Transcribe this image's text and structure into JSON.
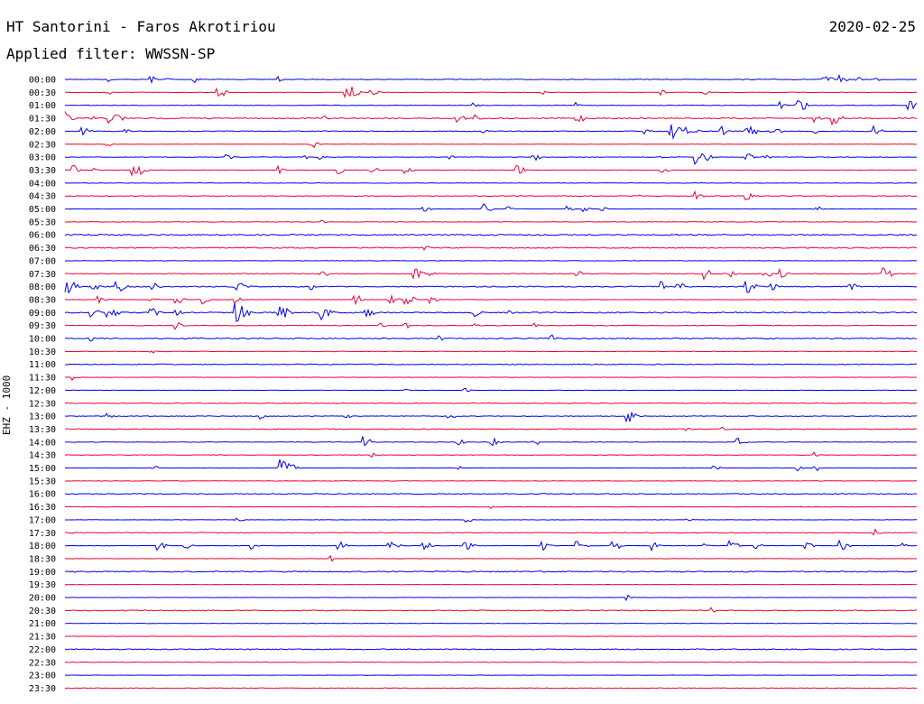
{
  "header": {
    "title": "HT Santorini - Faros Akrotiriou",
    "date": "2020-02-25",
    "filter_label": "Applied filter:",
    "filter_value": "WWSSN-SP"
  },
  "channel_label": "EHZ - 1000",
  "colors": {
    "odd_trace": "#0000ee",
    "even_trace": "#ee0033",
    "label": "#000000",
    "background": "#ffffff"
  },
  "chart_data": {
    "type": "line",
    "title": "HT Santorini - Faros Akrotiriou",
    "subtitle": "Applied filter: WWSSN-SP",
    "ylabel": "EHZ - 1000",
    "xlabel": "",
    "x_range_minutes": [
      0,
      30
    ],
    "grid": false,
    "legend": "none",
    "rows": [
      {
        "time": "00:00",
        "noise": 0.6,
        "events": [
          [
            0.05,
            2
          ],
          [
            0.1,
            3
          ],
          [
            0.12,
            2
          ],
          [
            0.15,
            3
          ],
          [
            0.25,
            2
          ],
          [
            0.89,
            4
          ],
          [
            0.91,
            3
          ],
          [
            0.93,
            2
          ],
          [
            0.95,
            2
          ]
        ]
      },
      {
        "time": "00:30",
        "noise": 0.4,
        "events": [
          [
            0.05,
            2
          ],
          [
            0.18,
            4
          ],
          [
            0.33,
            6
          ],
          [
            0.36,
            3
          ],
          [
            0.56,
            2
          ],
          [
            0.7,
            2
          ],
          [
            0.75,
            2
          ]
        ]
      },
      {
        "time": "01:00",
        "noise": 0.5,
        "events": [
          [
            0.48,
            2
          ],
          [
            0.6,
            2
          ],
          [
            0.84,
            3
          ],
          [
            0.86,
            5
          ],
          [
            0.99,
            5
          ]
        ]
      },
      {
        "time": "01:30",
        "noise": 1.0,
        "events": [
          [
            0.0,
            5
          ],
          [
            0.03,
            3
          ],
          [
            0.05,
            4
          ],
          [
            0.06,
            4
          ],
          [
            0.3,
            3
          ],
          [
            0.46,
            4
          ],
          [
            0.48,
            3
          ],
          [
            0.6,
            4
          ],
          [
            0.88,
            3
          ],
          [
            0.9,
            5
          ]
        ]
      },
      {
        "time": "02:00",
        "noise": 0.7,
        "events": [
          [
            0.02,
            4
          ],
          [
            0.07,
            2
          ],
          [
            0.49,
            2
          ],
          [
            0.68,
            3
          ],
          [
            0.71,
            6
          ],
          [
            0.73,
            5
          ],
          [
            0.77,
            4
          ],
          [
            0.8,
            5
          ],
          [
            0.83,
            4
          ],
          [
            0.88,
            2
          ],
          [
            0.95,
            4
          ]
        ]
      },
      {
        "time": "02:30",
        "noise": 0.3,
        "events": [
          [
            0.05,
            2
          ],
          [
            0.29,
            3
          ]
        ]
      },
      {
        "time": "03:00",
        "noise": 0.5,
        "events": [
          [
            0.19,
            3
          ],
          [
            0.28,
            2
          ],
          [
            0.3,
            2
          ],
          [
            0.45,
            2
          ],
          [
            0.55,
            3
          ],
          [
            0.7,
            2
          ],
          [
            0.74,
            7
          ],
          [
            0.8,
            3
          ],
          [
            0.82,
            3
          ]
        ]
      },
      {
        "time": "03:30",
        "noise": 0.4,
        "events": [
          [
            0.01,
            4
          ],
          [
            0.03,
            3
          ],
          [
            0.08,
            6
          ],
          [
            0.25,
            3
          ],
          [
            0.32,
            3
          ],
          [
            0.36,
            3
          ],
          [
            0.4,
            3
          ],
          [
            0.53,
            4
          ],
          [
            0.7,
            3
          ]
        ]
      },
      {
        "time": "04:00",
        "noise": 0.5,
        "events": []
      },
      {
        "time": "04:30",
        "noise": 0.6,
        "events": [
          [
            0.67,
            2
          ],
          [
            0.74,
            4
          ],
          [
            0.8,
            3
          ]
        ]
      },
      {
        "time": "05:00",
        "noise": 0.3,
        "events": [
          [
            0.42,
            3
          ],
          [
            0.49,
            4
          ],
          [
            0.52,
            2
          ],
          [
            0.59,
            2
          ],
          [
            0.61,
            2
          ],
          [
            0.63,
            2
          ],
          [
            0.88,
            3
          ]
        ]
      },
      {
        "time": "05:30",
        "noise": 0.5,
        "events": [
          [
            0.3,
            2
          ]
        ]
      },
      {
        "time": "06:00",
        "noise": 1.2,
        "events": []
      },
      {
        "time": "06:30",
        "noise": 1.0,
        "events": [
          [
            0.42,
            3
          ]
        ]
      },
      {
        "time": "07:00",
        "noise": 0.4,
        "events": []
      },
      {
        "time": "07:30",
        "noise": 0.7,
        "events": [
          [
            0.3,
            3
          ],
          [
            0.41,
            4
          ],
          [
            0.43,
            2
          ],
          [
            0.6,
            3
          ],
          [
            0.75,
            4
          ],
          [
            0.78,
            3
          ],
          [
            0.82,
            4
          ],
          [
            0.84,
            3
          ],
          [
            0.96,
            5
          ]
        ]
      },
      {
        "time": "08:00",
        "noise": 0.9,
        "events": [
          [
            0.0,
            6
          ],
          [
            0.03,
            4
          ],
          [
            0.06,
            6
          ],
          [
            0.1,
            4
          ],
          [
            0.2,
            6
          ],
          [
            0.29,
            3
          ],
          [
            0.7,
            4
          ],
          [
            0.72,
            4
          ],
          [
            0.8,
            5
          ],
          [
            0.83,
            3
          ],
          [
            0.92,
            4
          ]
        ]
      },
      {
        "time": "08:30",
        "noise": 0.4,
        "events": [
          [
            0.04,
            3
          ],
          [
            0.1,
            3
          ],
          [
            0.13,
            4
          ],
          [
            0.16,
            4
          ],
          [
            0.2,
            3
          ],
          [
            0.34,
            4
          ],
          [
            0.38,
            4
          ],
          [
            0.4,
            4
          ],
          [
            0.43,
            3
          ]
        ]
      },
      {
        "time": "09:00",
        "noise": 1.0,
        "events": [
          [
            0.03,
            4
          ],
          [
            0.05,
            5
          ],
          [
            0.1,
            4
          ],
          [
            0.13,
            3
          ],
          [
            0.2,
            7
          ],
          [
            0.25,
            6
          ],
          [
            0.3,
            6
          ],
          [
            0.35,
            5
          ],
          [
            0.48,
            3
          ],
          [
            0.52,
            2
          ]
        ]
      },
      {
        "time": "09:30",
        "noise": 0.6,
        "events": [
          [
            0.13,
            3
          ],
          [
            0.37,
            2
          ],
          [
            0.4,
            3
          ],
          [
            0.48,
            2
          ],
          [
            0.55,
            2
          ]
        ]
      },
      {
        "time": "10:00",
        "noise": 1.0,
        "events": [
          [
            0.03,
            2
          ],
          [
            0.44,
            2
          ],
          [
            0.57,
            3
          ]
        ]
      },
      {
        "time": "10:30",
        "noise": 0.5,
        "events": [
          [
            0.1,
            2
          ]
        ]
      },
      {
        "time": "11:00",
        "noise": 0.8,
        "events": []
      },
      {
        "time": "11:30",
        "noise": 0.3,
        "events": [
          [
            0.01,
            2
          ]
        ]
      },
      {
        "time": "12:00",
        "noise": 0.3,
        "events": [
          [
            0.4,
            2
          ],
          [
            0.47,
            2
          ]
        ]
      },
      {
        "time": "12:30",
        "noise": 0.7,
        "events": []
      },
      {
        "time": "13:00",
        "noise": 0.6,
        "events": [
          [
            0.05,
            2
          ],
          [
            0.23,
            2
          ],
          [
            0.33,
            2
          ],
          [
            0.45,
            3
          ],
          [
            0.66,
            5
          ]
        ]
      },
      {
        "time": "13:30",
        "noise": 0.8,
        "events": [
          [
            0.73,
            2
          ],
          [
            0.77,
            2
          ]
        ]
      },
      {
        "time": "14:00",
        "noise": 0.5,
        "events": [
          [
            0.35,
            4
          ],
          [
            0.46,
            3
          ],
          [
            0.5,
            4
          ],
          [
            0.55,
            3
          ],
          [
            0.79,
            4
          ]
        ]
      },
      {
        "time": "14:30",
        "noise": 0.4,
        "events": [
          [
            0.36,
            2
          ],
          [
            0.88,
            2
          ]
        ]
      },
      {
        "time": "15:00",
        "noise": 0.3,
        "events": [
          [
            0.1,
            3
          ],
          [
            0.25,
            8
          ],
          [
            0.46,
            2
          ],
          [
            0.76,
            3
          ],
          [
            0.86,
            3
          ],
          [
            0.88,
            3
          ]
        ]
      },
      {
        "time": "15:30",
        "noise": 0.4,
        "events": []
      },
      {
        "time": "16:00",
        "noise": 0.8,
        "events": []
      },
      {
        "time": "16:30",
        "noise": 0.4,
        "events": [
          [
            0.5,
            2
          ]
        ]
      },
      {
        "time": "17:00",
        "noise": 0.3,
        "events": [
          [
            0.2,
            3
          ],
          [
            0.47,
            3
          ],
          [
            0.73,
            2
          ]
        ]
      },
      {
        "time": "17:30",
        "noise": 0.7,
        "events": [
          [
            0.95,
            3
          ]
        ]
      },
      {
        "time": "18:00",
        "noise": 0.4,
        "events": [
          [
            0.11,
            4
          ],
          [
            0.14,
            3
          ],
          [
            0.22,
            3
          ],
          [
            0.32,
            4
          ],
          [
            0.38,
            5
          ],
          [
            0.42,
            4
          ],
          [
            0.47,
            4
          ],
          [
            0.56,
            4
          ],
          [
            0.6,
            5
          ],
          [
            0.64,
            5
          ],
          [
            0.69,
            4
          ],
          [
            0.75,
            3
          ],
          [
            0.78,
            4
          ],
          [
            0.81,
            3
          ],
          [
            0.87,
            3
          ],
          [
            0.91,
            4
          ],
          [
            0.98,
            3
          ]
        ]
      },
      {
        "time": "18:30",
        "noise": 0.3,
        "events": [
          [
            0.31,
            3
          ]
        ]
      },
      {
        "time": "19:00",
        "noise": 1.0,
        "events": []
      },
      {
        "time": "19:30",
        "noise": 0.3,
        "events": []
      },
      {
        "time": "20:00",
        "noise": 0.3,
        "events": [
          [
            0.66,
            2
          ]
        ]
      },
      {
        "time": "20:30",
        "noise": 0.8,
        "events": [
          [
            0.76,
            2
          ]
        ]
      },
      {
        "time": "21:00",
        "noise": 0.3,
        "events": []
      },
      {
        "time": "21:30",
        "noise": 0.3,
        "events": []
      },
      {
        "time": "22:00",
        "noise": 0.9,
        "events": []
      },
      {
        "time": "22:30",
        "noise": 0.4,
        "events": []
      },
      {
        "time": "23:00",
        "noise": 0.3,
        "events": []
      },
      {
        "time": "23:30",
        "noise": 0.6,
        "events": []
      }
    ]
  }
}
